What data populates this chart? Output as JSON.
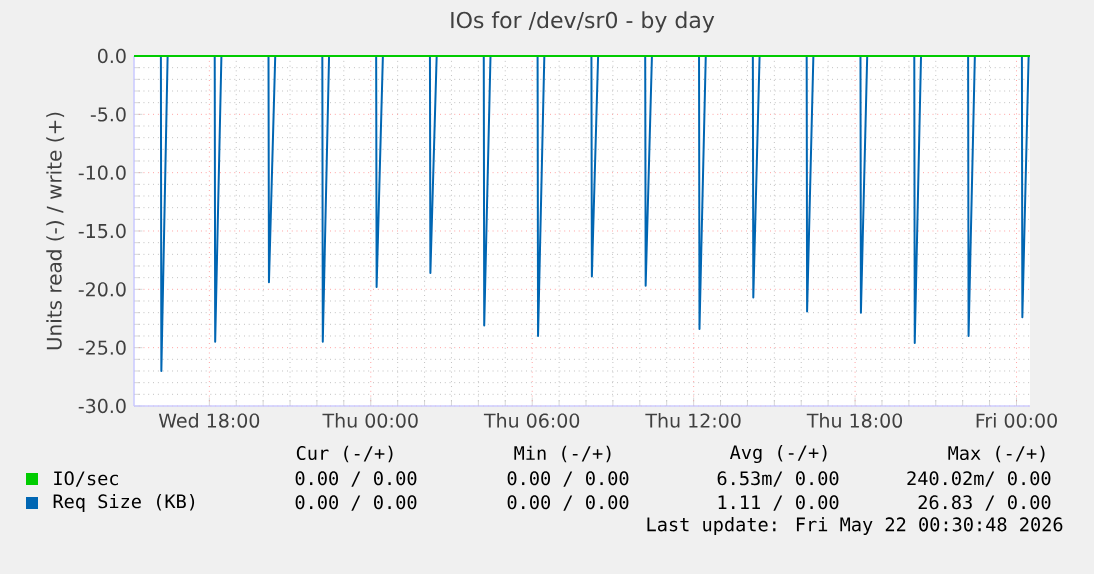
{
  "chart_data": {
    "type": "line",
    "title": "IOs for /dev/sr0 - by day",
    "ylabel": "Units read (-) / write (+)",
    "xlim": [
      "2026-05-20T15:12",
      "2026-05-22T00:30"
    ],
    "ylim": [
      -30,
      0
    ],
    "xticks": [
      {
        "value": "2026-05-20T18:00",
        "label": "Wed 18:00"
      },
      {
        "value": "2026-05-21T00:00",
        "label": "Thu 00:00"
      },
      {
        "value": "2026-05-21T06:00",
        "label": "Thu 06:00"
      },
      {
        "value": "2026-05-21T12:00",
        "label": "Thu 12:00"
      },
      {
        "value": "2026-05-21T18:00",
        "label": "Thu 18:00"
      },
      {
        "value": "2026-05-22T00:00",
        "label": "Fri 00:00"
      }
    ],
    "yticks": [
      {
        "value": 0,
        "label": "0.0"
      },
      {
        "value": -5,
        "label": "-5.0"
      },
      {
        "value": -10,
        "label": "-10.0"
      },
      {
        "value": -15,
        "label": "-15.0"
      },
      {
        "value": -20,
        "label": "-20.0"
      },
      {
        "value": -25,
        "label": "-25.0"
      },
      {
        "value": -30,
        "label": "-30.0"
      }
    ],
    "grid": true,
    "legend": "bottom",
    "series": [
      {
        "name": "IO/sec",
        "color": "#00cc00",
        "x": [
          "2026-05-20T15:12",
          "2026-05-22T00:30"
        ],
        "values": [
          0,
          0
        ]
      },
      {
        "name": "Req Size (KB)",
        "color": "#0066b3",
        "x": [
          "2026-05-20T16:12",
          "2026-05-20T16:13",
          "2026-05-20T16:27",
          "2026-05-20T18:12",
          "2026-05-20T18:13",
          "2026-05-20T18:27",
          "2026-05-20T20:12",
          "2026-05-20T20:13",
          "2026-05-20T20:27",
          "2026-05-20T22:12",
          "2026-05-20T22:13",
          "2026-05-20T22:27",
          "2026-05-21T00:12",
          "2026-05-21T00:13",
          "2026-05-21T00:27",
          "2026-05-21T02:12",
          "2026-05-21T02:13",
          "2026-05-21T02:27",
          "2026-05-21T04:12",
          "2026-05-21T04:13",
          "2026-05-21T04:27",
          "2026-05-21T06:12",
          "2026-05-21T06:13",
          "2026-05-21T06:27",
          "2026-05-21T08:12",
          "2026-05-21T08:13",
          "2026-05-21T08:27",
          "2026-05-21T10:12",
          "2026-05-21T10:13",
          "2026-05-21T10:27",
          "2026-05-21T12:12",
          "2026-05-21T12:13",
          "2026-05-21T12:27",
          "2026-05-21T14:12",
          "2026-05-21T14:13",
          "2026-05-21T14:27",
          "2026-05-21T16:12",
          "2026-05-21T16:13",
          "2026-05-21T16:27",
          "2026-05-21T18:12",
          "2026-05-21T18:13",
          "2026-05-21T18:27",
          "2026-05-21T20:12",
          "2026-05-21T20:13",
          "2026-05-21T20:27",
          "2026-05-21T22:12",
          "2026-05-21T22:13",
          "2026-05-21T22:27",
          "2026-05-22T00:12",
          "2026-05-22T00:13",
          "2026-05-22T00:27"
        ],
        "values": [
          0,
          -27.0,
          0,
          0,
          -24.5,
          0,
          0,
          -19.4,
          0,
          0,
          -24.5,
          0,
          0,
          -19.8,
          0,
          0,
          -18.6,
          0,
          0,
          -23.1,
          0,
          0,
          -24.0,
          0,
          0,
          -18.9,
          0,
          0,
          -19.7,
          0,
          0,
          -23.4,
          0,
          0,
          -20.7,
          0,
          0,
          -21.9,
          0,
          0,
          -22.0,
          0,
          0,
          -24.6,
          0,
          0,
          -24.0,
          0,
          0,
          -22.4,
          0
        ]
      }
    ],
    "annotations": [
      "Cur (-/+)",
      "Min (-/+)",
      "Avg (-/+)",
      "Max (-/+)",
      "0.00 /  0.00",
      "0.00 /  0.00",
      "6.53m/  0.00",
      "240.02m/  0.00",
      "0.00 /  0.00",
      "0.00 /  0.00",
      "1.11 /  0.00",
      "26.83 /  0.00",
      "Last update: Fri May 22 00:30:48 2026"
    ]
  }
}
